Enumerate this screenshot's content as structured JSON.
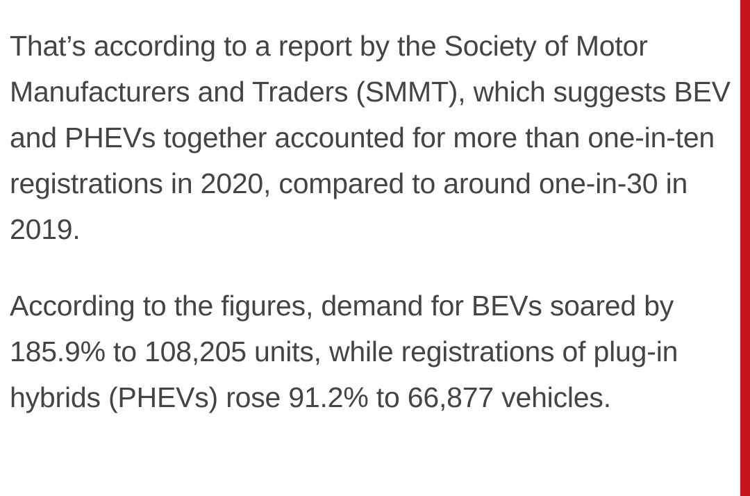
{
  "article": {
    "paragraphs": [
      "That’s according to a report by the Society of Motor Manufacturers and Traders (SMMT), which suggests BEV and PHEVs together accounted for more than one-in-ten registrations in 2020, compared to around one-in-30 in 2019.",
      "According to the figures, demand for BEVs soared by 185.9% to 108,205 units, while registrations of plug-in hybrids (PHEVs) rose 91.2% to 66,877 vehicles."
    ]
  },
  "colors": {
    "text": "#444444",
    "accent": "#c4161c",
    "background": "#ffffff"
  }
}
